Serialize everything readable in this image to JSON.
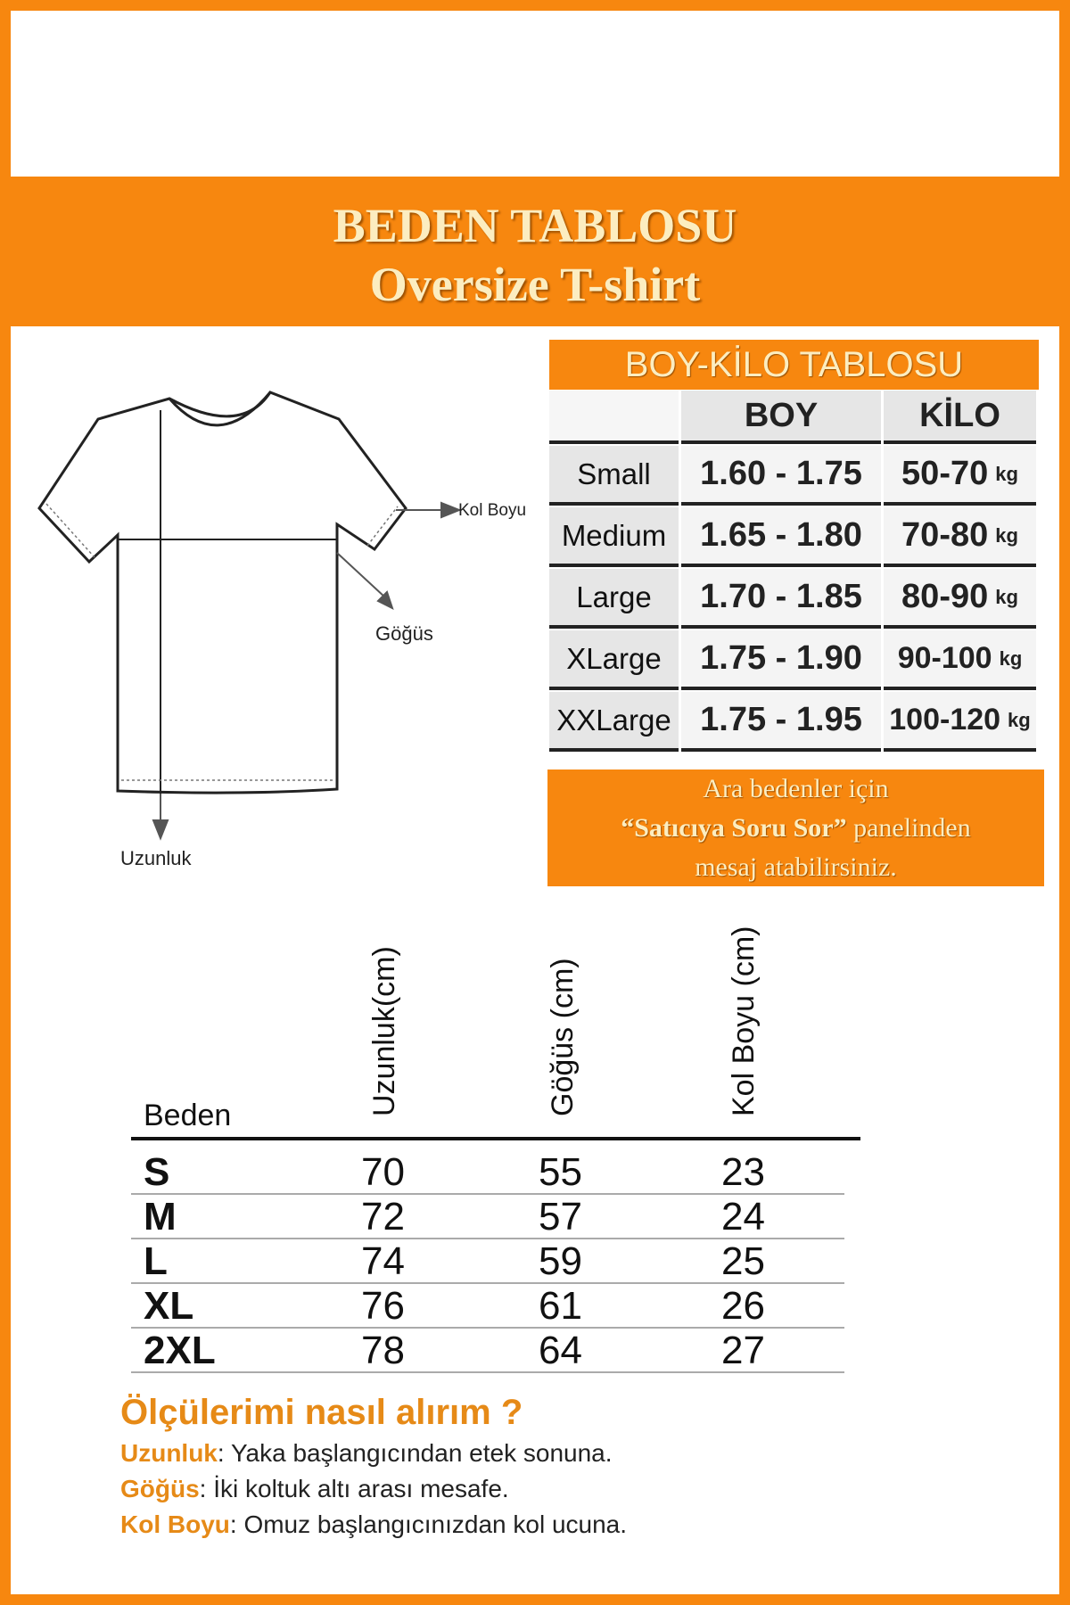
{
  "header": {
    "title": "BEDEN TABLOSU",
    "subtitle": "Oversize T-shirt"
  },
  "diagram": {
    "labels": {
      "sleeve": "Kol Boyu",
      "chest": "Göğüs",
      "length": "Uzunluk"
    }
  },
  "boy_kilo": {
    "title": "BOY-KİLO TABLOSU",
    "columns": [
      "BOY",
      "KİLO"
    ],
    "unit": "kg",
    "rows": [
      {
        "size": "Small",
        "boy": "1.60 - 1.75",
        "kilo": "50-70"
      },
      {
        "size": "Medium",
        "boy": "1.65 - 1.80",
        "kilo": "70-80"
      },
      {
        "size": "Large",
        "boy": "1.70 - 1.85",
        "kilo": "80-90"
      },
      {
        "size": "XLarge",
        "boy": "1.75 - 1.90",
        "kilo": "90-100"
      },
      {
        "size": "XXLarge",
        "boy": "1.75 - 1.95",
        "kilo": "100-120"
      }
    ]
  },
  "note": {
    "line1": "Ara bedenler için",
    "line2_bold": "“Satıcıya Soru Sor”",
    "line2_rest": " panelinden",
    "line3": "mesaj atabilirsiniz."
  },
  "measure": {
    "columns": [
      "Beden",
      "Uzunluk(cm)",
      "Göğüs (cm)",
      "Kol Boyu (cm)"
    ],
    "rows": [
      [
        "S",
        "70",
        "55",
        "23"
      ],
      [
        "M",
        "72",
        "57",
        "24"
      ],
      [
        "L",
        "74",
        "59",
        "25"
      ],
      [
        "XL",
        "76",
        "61",
        "26"
      ],
      [
        "2XL",
        "78",
        "64",
        "27"
      ]
    ]
  },
  "howto": {
    "title": "Ölçülerimi nasıl alırım ?",
    "items": [
      {
        "term": "Uzunluk",
        "desc": ": Yaka başlangıcından etek sonuna."
      },
      {
        "term": "Göğüs",
        "desc": ": İki koltuk altı arası mesafe."
      },
      {
        "term": "Kol Boyu",
        "desc": ": Omuz başlangıcınızdan kol ucuna."
      }
    ]
  },
  "colors": {
    "orange": "#f7870f",
    "cream": "#fcedc0"
  }
}
